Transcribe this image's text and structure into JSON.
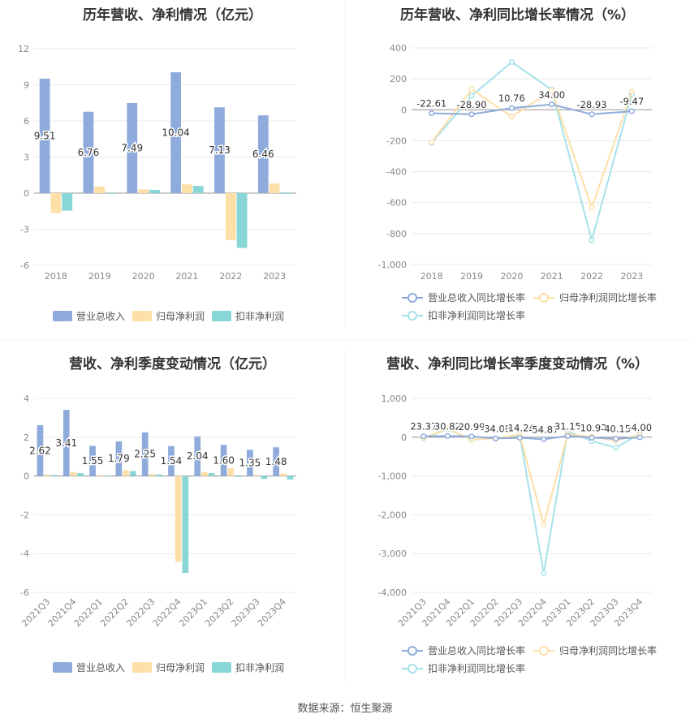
{
  "footer": "数据来源：恒生聚源",
  "colors": {
    "revenue": "#8eabdb",
    "net_profit": "#fde0a8",
    "deducted_profit": "#88d6d5",
    "grid": "#e8e8e8",
    "axis_text": "#888888",
    "label_text": "#333333"
  },
  "chart_data": [
    {
      "id": "annual_values",
      "type": "bar",
      "title": "历年营收、净利情况（亿元）",
      "categories": [
        "2018",
        "2019",
        "2020",
        "2021",
        "2022",
        "2023"
      ],
      "series": [
        {
          "name": "营业总收入",
          "values": [
            9.51,
            6.76,
            7.49,
            10.04,
            7.13,
            6.46
          ]
        },
        {
          "name": "归母净利润",
          "values": [
            -1.65,
            0.55,
            0.32,
            0.73,
            -3.9,
            0.8
          ]
        },
        {
          "name": "扣非净利润",
          "values": [
            -1.45,
            -0.06,
            0.27,
            0.6,
            -4.55,
            -0.06
          ]
        }
      ],
      "data_labels": [
        "9.51",
        "6.76",
        "7.49",
        "10.04",
        "7.13",
        "6.46"
      ],
      "yticks": [
        "12",
        "9",
        "6",
        "3",
        "0",
        "-3",
        "-6"
      ],
      "ylim": [
        -6,
        12
      ],
      "grid": true,
      "legend_position": "bottom"
    },
    {
      "id": "annual_growth",
      "type": "line",
      "title": "历年营收、净利同比增长率情况（%）",
      "categories": [
        "2018",
        "2019",
        "2020",
        "2021",
        "2022",
        "2023"
      ],
      "series": [
        {
          "name": "营业总收入同比增长率",
          "values": [
            -22.61,
            -28.9,
            10.76,
            34.0,
            -28.93,
            -9.47
          ]
        },
        {
          "name": "归母净利润同比增长率",
          "values": [
            -210,
            133,
            -45,
            125,
            -633,
            118
          ]
        },
        {
          "name": "扣非净利润同比增长率",
          "values": [
            -215,
            90,
            308,
            130,
            -843,
            101
          ]
        }
      ],
      "data_labels": [
        "-22.61",
        "-28.90",
        "10.76",
        "34.00",
        "-28.93",
        "-9.47"
      ],
      "yticks": [
        "400",
        "200",
        "0",
        "-200",
        "-400",
        "-600",
        "-800",
        "-1,000"
      ],
      "ylim": [
        -1000,
        400
      ],
      "grid": true,
      "legend_position": "bottom"
    },
    {
      "id": "quarterly_values",
      "type": "bar",
      "title": "营收、净利季度变动情况（亿元）",
      "categories": [
        "2021Q3",
        "2021Q4",
        "2022Q1",
        "2022Q2",
        "2022Q3",
        "2022Q4",
        "2023Q1",
        "2023Q2",
        "2023Q3",
        "2023Q4"
      ],
      "series": [
        {
          "name": "营业总收入",
          "values": [
            2.62,
            3.41,
            1.55,
            1.79,
            2.25,
            1.54,
            2.04,
            1.6,
            1.35,
            1.48
          ]
        },
        {
          "name": "归母净利润",
          "values": [
            0.08,
            0.2,
            0.05,
            0.3,
            0.1,
            -4.42,
            0.2,
            0.4,
            0.05,
            0.12
          ]
        },
        {
          "name": "扣非净利润",
          "values": [
            0.05,
            0.15,
            0.03,
            0.25,
            0.08,
            -5.0,
            0.15,
            -0.05,
            -0.15,
            -0.18
          ]
        }
      ],
      "data_labels": [
        "2.62",
        "3.41",
        "1.55",
        "1.79",
        "2.25",
        "1.54",
        "2.04",
        "1.60",
        "1.35",
        "1.48"
      ],
      "yticks": [
        "4",
        "2",
        "0",
        "-2",
        "-4",
        "-6"
      ],
      "ylim": [
        -6,
        4
      ],
      "grid": true,
      "legend_position": "bottom"
    },
    {
      "id": "quarterly_growth",
      "type": "line",
      "title": "营收、净利同比增长率季度变动情况（%）",
      "categories": [
        "2021Q3",
        "2021Q4",
        "2022Q1",
        "2022Q2",
        "2022Q3",
        "2022Q4",
        "2023Q1",
        "2023Q2",
        "2023Q3",
        "2023Q4"
      ],
      "series": [
        {
          "name": "营业总收入同比增长率",
          "values": [
            23.37,
            30.82,
            20.99,
            -34.08,
            -14.24,
            -54.87,
            31.15,
            -10.92,
            -40.15,
            -4.0
          ]
        },
        {
          "name": "归母净利润同比增长率",
          "values": [
            -20,
            220,
            -60,
            -30,
            60,
            -2250,
            80,
            10,
            -90,
            60
          ]
        },
        {
          "name": "扣非净利润同比增长率",
          "values": [
            -30,
            210,
            -70,
            -20,
            50,
            -3500,
            150,
            -100,
            -270,
            90
          ]
        }
      ],
      "data_labels": [
        "23.37",
        "30.82",
        "20.99",
        "-34.08",
        "-14.24",
        "-54.87",
        "31.15",
        "-10.92",
        "-40.15",
        "-4.00"
      ],
      "yticks": [
        "1,000",
        "0",
        "-1,000",
        "-2,000",
        "-3,000",
        "-4,000"
      ],
      "ylim": [
        -4000,
        1000
      ],
      "grid": true,
      "legend_position": "bottom"
    }
  ]
}
